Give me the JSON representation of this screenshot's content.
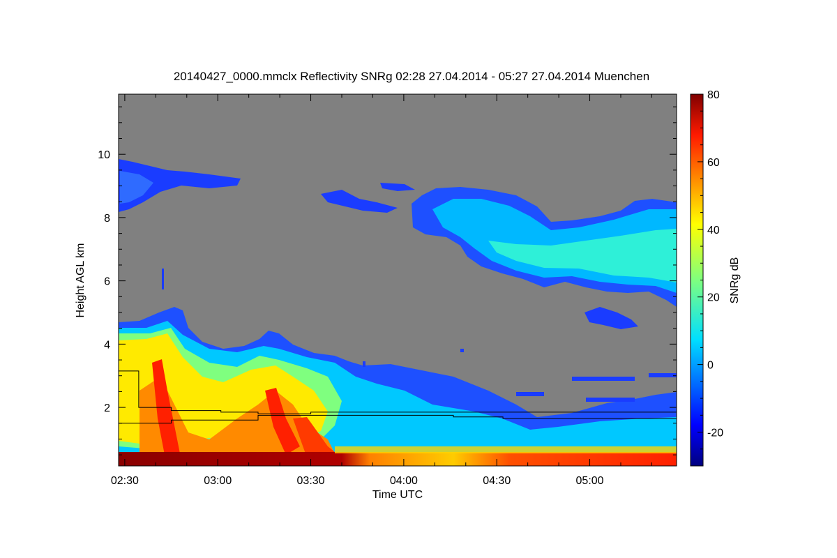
{
  "chart_data": {
    "type": "heatmap",
    "title": "20140427_0000.mmclx Reflectivity SNRg   02:28 27.04.2014 - 05:27 27.04.2014 Muenchen",
    "xlabel": "Time UTC",
    "ylabel": "Height AGL km",
    "x_ticks": [
      "02:30",
      "03:00",
      "03:30",
      "04:00",
      "04:30",
      "05:00"
    ],
    "x_tick_minutes": [
      150,
      180,
      210,
      240,
      270,
      300
    ],
    "xlim_minutes": [
      148,
      328
    ],
    "y_ticks": [
      2,
      4,
      6,
      8,
      10
    ],
    "ylim": [
      0.15,
      11.9
    ],
    "colorbar": {
      "label": "SNRg dB",
      "ticks": [
        -20,
        0,
        20,
        40,
        60,
        80
      ],
      "range": [
        -30,
        80
      ],
      "colormap": "jet"
    },
    "background_color": "#808080",
    "overlay_lines": [
      {
        "points": [
          [
            148,
            3.15
          ],
          [
            154.5,
            3.15
          ],
          [
            154.5,
            2.0
          ],
          [
            165,
            2.0
          ],
          [
            165,
            1.9
          ],
          [
            181,
            1.9
          ],
          [
            181,
            1.85
          ],
          [
            193,
            1.85
          ],
          [
            193,
            1.8
          ],
          [
            210,
            1.8
          ],
          [
            210,
            1.85
          ],
          [
            328,
            1.85
          ]
        ]
      },
      {
        "points": [
          [
            148,
            1.5
          ],
          [
            165,
            1.5
          ],
          [
            165,
            1.6
          ],
          [
            193,
            1.6
          ],
          [
            193,
            1.75
          ],
          [
            256,
            1.75
          ],
          [
            256,
            1.7
          ],
          [
            272,
            1.7
          ],
          [
            272,
            1.65
          ],
          [
            328,
            1.65
          ]
        ]
      }
    ]
  }
}
